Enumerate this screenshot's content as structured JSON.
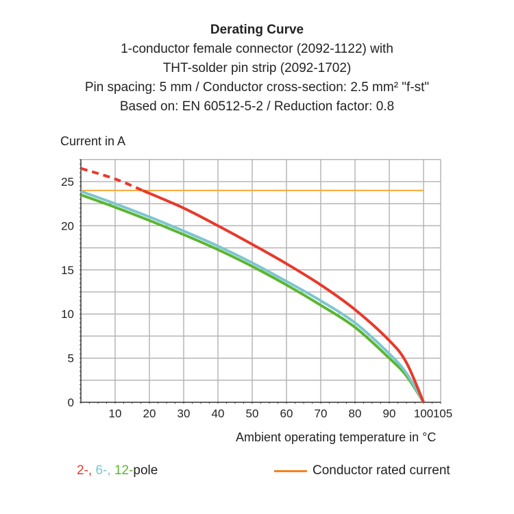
{
  "chart_data": {
    "type": "line",
    "title": "Derating Curve",
    "subtitle_lines": [
      "1-conductor female connector (2092-1122) with",
      "THT-solder pin strip (2092-1702)",
      "Pin spacing: 5 mm / Conductor cross-section: 2.5 mm² \"f-st\"",
      "Based on: EN 60512-5-2 / Reduction factor: 0.8"
    ],
    "ylabel": "Current in A",
    "xlabel": "Ambient operating temperature in °C",
    "xlim": [
      0,
      105
    ],
    "ylim": [
      0,
      27.5
    ],
    "xticks": [
      10,
      20,
      30,
      40,
      50,
      60,
      70,
      80,
      90,
      100,
      105
    ],
    "yticks": [
      0,
      5,
      10,
      15,
      20,
      25
    ],
    "grid": true,
    "legend": {
      "pole_prefix": [
        "2-,",
        "6-,",
        "12-"
      ],
      "pole_suffix": "pole",
      "rated": "Conductor rated current"
    },
    "series": [
      {
        "color": "#e8392b",
        "dashed_until_x": 18,
        "x": [
          0,
          10,
          18,
          30,
          40,
          50,
          60,
          70,
          80,
          90,
          95,
          100
        ],
        "y": [
          26.5,
          25.3,
          24,
          22,
          20,
          17.9,
          15.7,
          13.3,
          10.5,
          7,
          4.5,
          0
        ]
      },
      {
        "color": "#7cc6cf",
        "x": [
          0,
          10,
          20,
          30,
          40,
          50,
          60,
          70,
          80,
          90,
          95,
          100
        ],
        "y": [
          23.9,
          22.5,
          21,
          19.4,
          17.7,
          15.8,
          13.7,
          11.5,
          9,
          5.5,
          3.3,
          0
        ]
      },
      {
        "color": "#5cb531",
        "x": [
          0,
          10,
          20,
          30,
          40,
          50,
          60,
          70,
          80,
          90,
          95,
          100
        ],
        "y": [
          23.5,
          22.1,
          20.6,
          19,
          17.3,
          15.4,
          13.3,
          11,
          8.5,
          5,
          3,
          0
        ]
      },
      {
        "color": "#f7a839",
        "x": [
          0,
          100
        ],
        "y": [
          24,
          24
        ]
      }
    ],
    "legend_rated_color": "#f58220"
  }
}
